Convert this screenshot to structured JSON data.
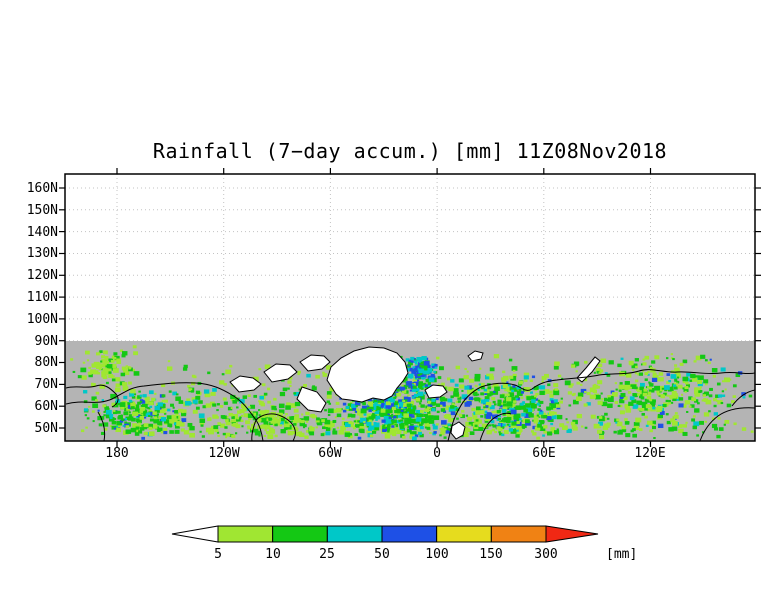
{
  "title": {
    "text": "Rainfall (7−day accum.) [mm] 11Z08Nov2018",
    "color": "#008b8b"
  },
  "chart_data": {
    "type": "heatmap",
    "title": "Rainfall (7−day accum.) [mm] 11Z08Nov2018",
    "variable": "Rainfall, 7-day accumulation",
    "units": "mm",
    "valid_time": "11Z08Nov2018",
    "projection": "cylindrical lat-lon band, northern latitudes",
    "x_axis": {
      "ticks": [
        "180",
        "120W",
        "60W",
        "0",
        "60E",
        "120E"
      ]
    },
    "y_axis": {
      "ticks": [
        "160N",
        "150N",
        "140N",
        "130N",
        "120N",
        "110N",
        "100N",
        "90N",
        "80N",
        "70N",
        "60N",
        "50N"
      ]
    },
    "colorbar": {
      "levels": [
        5,
        10,
        25,
        50,
        100,
        150,
        300
      ],
      "labels": [
        "5",
        "10",
        "25",
        "50",
        "100",
        "150",
        "300"
      ],
      "units_label": "[mm]",
      "below_min_color": "#ffffff",
      "segment_colors": [
        "#a0e632",
        "#14c814",
        "#00c8c8",
        "#1e50e6",
        "#e6dc1e",
        "#f08214"
      ],
      "above_max_color": "#f02814",
      "outline_color": "#000000"
    },
    "map": {
      "background_above_90N": "#ffffff",
      "background_below_90N": "#b4b4b4",
      "coastline_color": "#000000",
      "notable_features": [
        "Heavy rainfall (50-150+ mm, blue/cyan) over the North Atlantic between Greenland, Iceland and Norway",
        "Moderate rainfall over the North Pacific near the dateline",
        "Scattered light rainfall (5-25 mm, green) across 50N-75N over Canada, Europe and Siberia",
        "Greenland interior shown white; shaded data band only south of 90N"
      ]
    }
  }
}
